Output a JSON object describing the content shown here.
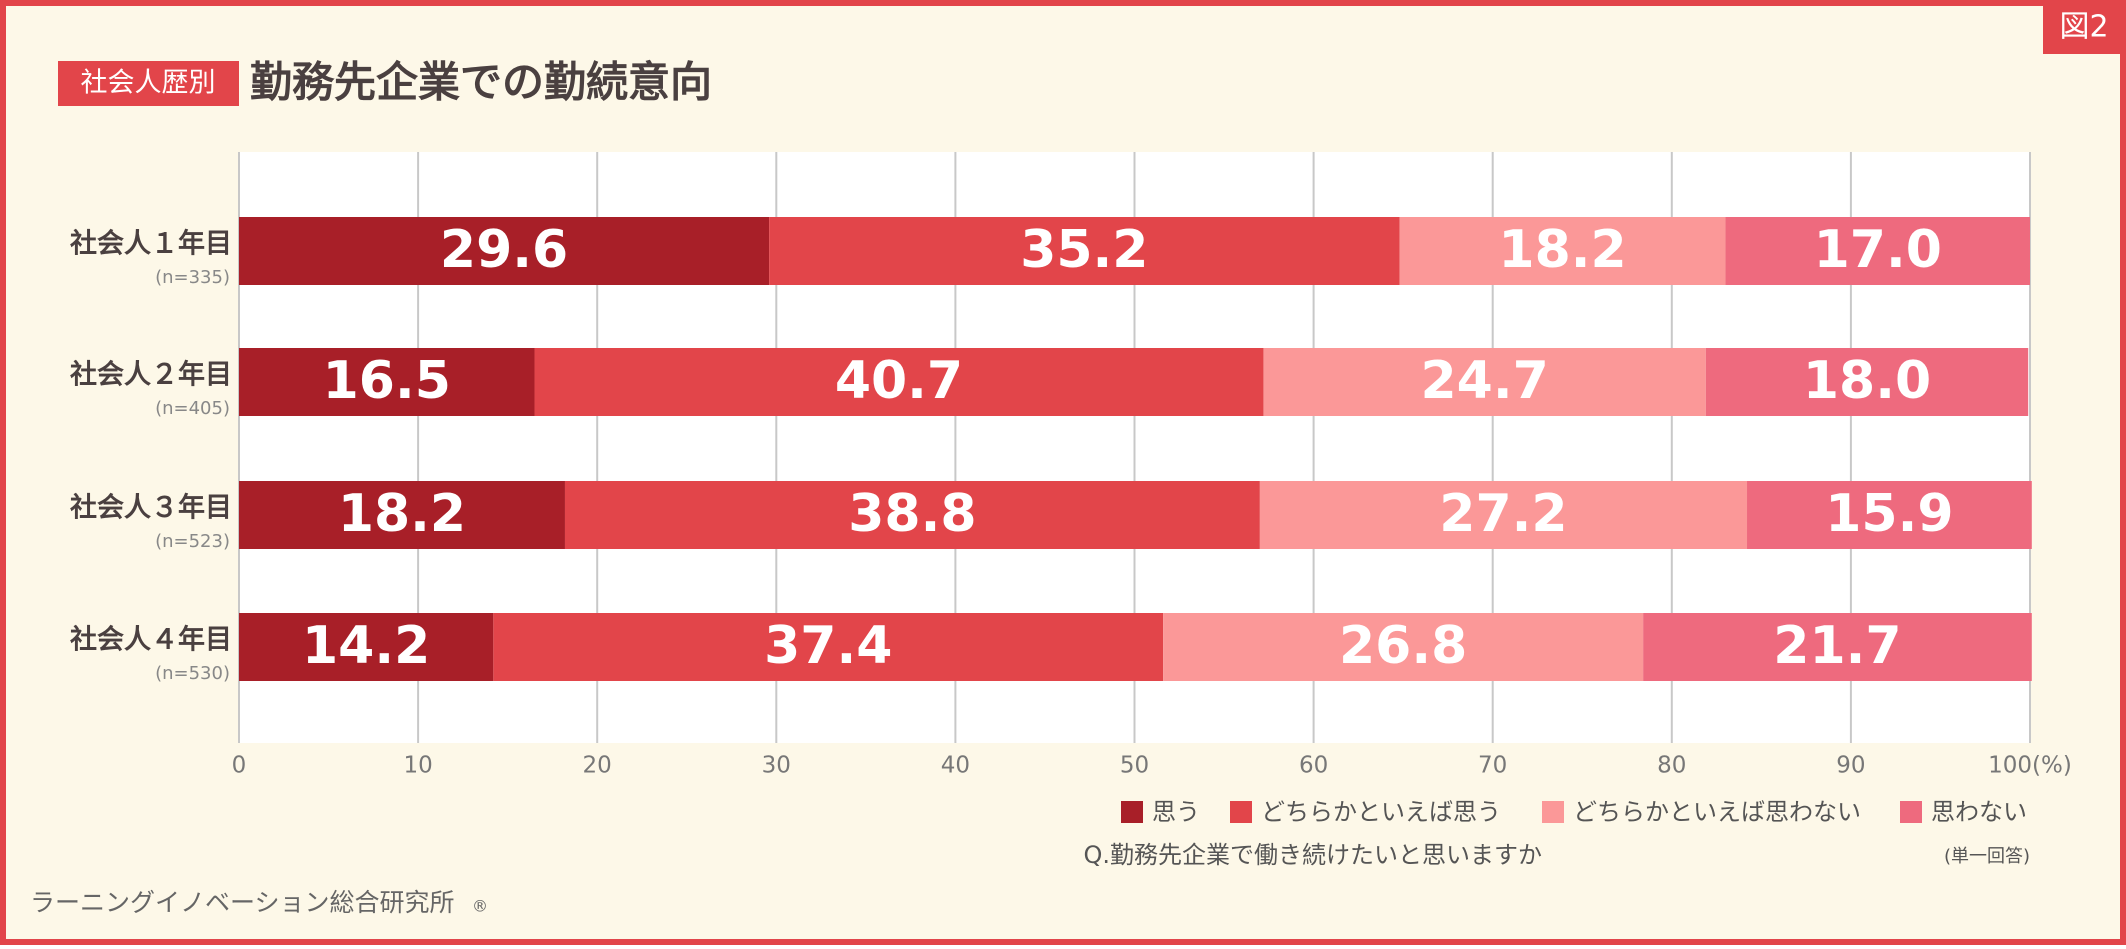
{
  "chart_data": {
    "type": "stacked_bar_horizontal",
    "figure_label": "図2",
    "badge": "社会人歴別",
    "title": "勤務先企業での勤続意向",
    "categories": [
      "社会人１年目",
      "社会人２年目",
      "社会人３年目",
      "社会人４年目"
    ],
    "sample_sizes": [
      "(n=335)",
      "(n=405)",
      "(n=523)",
      "(n=530)"
    ],
    "series": [
      {
        "name": "思う",
        "color": "#a81f28",
        "values": [
          29.6,
          16.5,
          18.2,
          14.2
        ],
        "value_labels": [
          "29.6",
          "16.5",
          "18.2",
          "14.2"
        ]
      },
      {
        "name": "どちらかといえば思う",
        "color": "#e2454a",
        "values": [
          35.2,
          40.7,
          38.8,
          37.4
        ],
        "value_labels": [
          "35.2",
          "40.7",
          "38.8",
          "37.4"
        ]
      },
      {
        "name": "どちらかといえば思わない",
        "color": "#fb9898",
        "values": [
          18.2,
          24.7,
          27.2,
          26.8
        ],
        "value_labels": [
          "18.2",
          "24.7",
          "27.2",
          "26.8"
        ]
      },
      {
        "name": "思わない",
        "color": "#ee6a7e",
        "values": [
          17.0,
          18.0,
          15.9,
          21.7
        ],
        "value_labels": [
          "17.0",
          "18.0",
          "15.9",
          "21.7"
        ]
      }
    ],
    "xlim": [
      0,
      100
    ],
    "xticks": [
      0,
      10,
      20,
      30,
      40,
      50,
      60,
      70,
      80,
      90,
      {
        "value": 100,
        "label": "100(%)"
      }
    ],
    "grid": true,
    "question": "Q.勤務先企業で働き続けたいと思いますか",
    "question_note": "(単一回答)",
    "source": "ラーニングイノベーション総合研究所",
    "source_mark": "®"
  }
}
